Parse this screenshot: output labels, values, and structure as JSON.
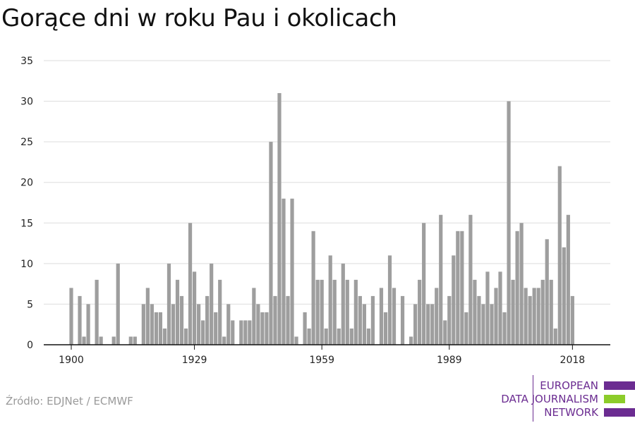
{
  "title": "Gorące dni w roku Pau i okolicach",
  "source": "Źródło: EDJNet / ECMWF",
  "logo": {
    "line1": "EUROPEAN",
    "line2": "DATA JOURNALISM",
    "line3": "NETWORK",
    "colors": {
      "purple": "#6b2c91",
      "green": "#8ccc2a"
    }
  },
  "colors": {
    "bar": "#9e9e9e",
    "grid": "#dddddd",
    "axis": "#111111"
  },
  "chart_data": {
    "type": "bar",
    "title": "Gorące dni w roku Pau i okolicach",
    "xlabel": "",
    "ylabel": "",
    "ylim": [
      0,
      35
    ],
    "yticks": [
      0,
      5,
      10,
      15,
      20,
      25,
      30,
      35
    ],
    "xticks": [
      1900,
      1929,
      1959,
      1989,
      2018
    ],
    "grid": true,
    "x": [
      1900,
      1901,
      1902,
      1903,
      1904,
      1905,
      1906,
      1907,
      1908,
      1909,
      1910,
      1911,
      1912,
      1913,
      1914,
      1915,
      1916,
      1917,
      1918,
      1919,
      1920,
      1921,
      1922,
      1923,
      1924,
      1925,
      1926,
      1927,
      1928,
      1929,
      1930,
      1931,
      1932,
      1933,
      1934,
      1935,
      1936,
      1937,
      1938,
      1939,
      1940,
      1941,
      1942,
      1943,
      1944,
      1945,
      1946,
      1947,
      1948,
      1949,
      1950,
      1951,
      1952,
      1953,
      1954,
      1955,
      1956,
      1957,
      1958,
      1959,
      1960,
      1961,
      1962,
      1963,
      1964,
      1965,
      1966,
      1967,
      1968,
      1969,
      1970,
      1971,
      1972,
      1973,
      1974,
      1975,
      1976,
      1977,
      1978,
      1979,
      1980,
      1981,
      1982,
      1983,
      1984,
      1985,
      1986,
      1987,
      1988,
      1989,
      1990,
      1991,
      1992,
      1993,
      1994,
      1995,
      1996,
      1997,
      1998,
      1999,
      2000,
      2001,
      2002,
      2003,
      2004,
      2005,
      2006,
      2007,
      2008,
      2009,
      2010,
      2011,
      2012,
      2013,
      2014,
      2015,
      2016,
      2017,
      2018,
      2019
    ],
    "values": [
      7,
      0,
      6,
      1,
      5,
      0,
      8,
      1,
      0,
      0,
      1,
      10,
      0,
      0,
      1,
      1,
      0,
      5,
      7,
      5,
      4,
      4,
      2,
      10,
      5,
      8,
      6,
      2,
      15,
      9,
      5,
      3,
      6,
      10,
      4,
      8,
      1,
      5,
      3,
      0,
      3,
      3,
      3,
      7,
      5,
      4,
      4,
      25,
      6,
      31,
      18,
      6,
      18,
      1,
      0,
      4,
      2,
      14,
      8,
      8,
      2,
      11,
      8,
      2,
      10,
      8,
      2,
      8,
      6,
      5,
      2,
      6,
      0,
      7,
      4,
      11,
      7,
      0,
      6,
      0,
      1,
      5,
      8,
      15,
      5,
      5,
      7,
      16,
      3,
      6,
      11,
      14,
      14,
      4,
      16,
      8,
      6,
      5,
      9,
      5,
      7,
      9,
      4,
      30,
      8,
      14,
      15,
      7,
      6,
      7,
      7,
      8,
      13,
      8,
      2,
      22,
      12,
      16,
      6,
      0
    ]
  }
}
